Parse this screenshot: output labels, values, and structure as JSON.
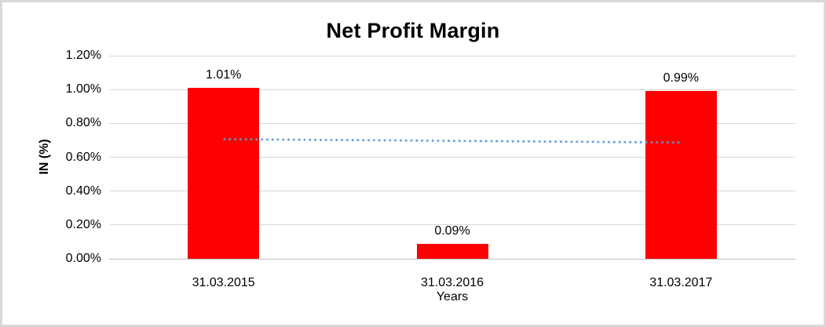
{
  "chart_data": {
    "type": "bar",
    "title": "Net Profit Margin",
    "xlabel": "Years",
    "ylabel": "IN (%)",
    "categories": [
      "31.03.2015",
      "31.03.2016",
      "31.03.2017"
    ],
    "values": [
      1.01,
      0.09,
      0.99
    ],
    "value_labels": [
      "1.01%",
      "0.09%",
      "0.99%"
    ],
    "ylim": [
      0,
      1.2
    ],
    "ytick_values": [
      0,
      0.2,
      0.4,
      0.6,
      0.8,
      1.0,
      1.2
    ],
    "ytick_labels": [
      "0.00%",
      "0.20%",
      "0.40%",
      "0.60%",
      "0.80%",
      "1.00%",
      "1.20%"
    ],
    "grid": true,
    "legend": false,
    "trendline": {
      "style": "dotted",
      "color": "#5B9BD5",
      "start_value": 0.7067,
      "end_value": 0.6867
    },
    "colors": {
      "bar": "#FF0000",
      "trendline": "#5B9BD5",
      "gridline": "#D9D9D9",
      "axis_line": "#BFBFBF",
      "text": "#000000",
      "frame_border": "#D8D8D8",
      "background": "#FFFFFF"
    }
  }
}
